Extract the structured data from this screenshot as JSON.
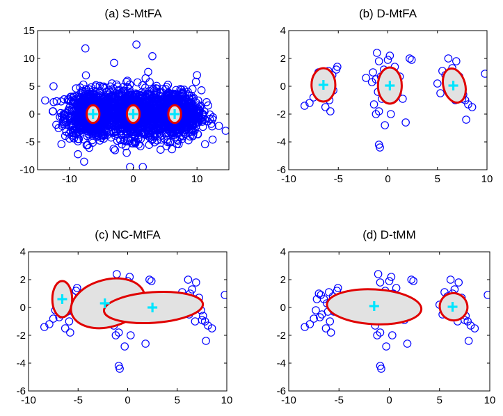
{
  "chart_data": [
    {
      "type": "scatter",
      "title": "(a) S-MtFA",
      "xlabel": "",
      "ylabel": "",
      "xlim": [
        -15,
        15
      ],
      "ylim": [
        -10,
        15
      ],
      "xticks": [
        -10,
        0,
        10
      ],
      "yticks": [
        -10,
        -5,
        0,
        5,
        10,
        15
      ],
      "dense": true,
      "clusters": [
        {
          "cx": -6.5,
          "cy": 0,
          "sx": 2.8,
          "sy": 2.5
        },
        {
          "cx": 0,
          "cy": 0,
          "sx": 3.0,
          "sy": 2.6
        },
        {
          "cx": 6.5,
          "cy": 0,
          "sx": 2.8,
          "sy": 2.5
        }
      ],
      "outliers": [
        [
          -7.5,
          11.8
        ],
        [
          0.5,
          12.5
        ],
        [
          3,
          10.4
        ],
        [
          -3,
          9.2
        ],
        [
          14.5,
          -3
        ],
        [
          -12.5,
          5
        ],
        [
          -11.5,
          -0.5
        ],
        [
          -0.5,
          -9.5
        ],
        [
          1.5,
          -9.5
        ],
        [
          10,
          7
        ]
      ],
      "components": [
        {
          "cx": -6.3,
          "cy": 0,
          "rx": 1.0,
          "ry": 1.6,
          "angle": 0
        },
        {
          "cx": 0,
          "cy": 0,
          "rx": 1.0,
          "ry": 1.6,
          "angle": 0
        },
        {
          "cx": 6.5,
          "cy": 0,
          "rx": 1.0,
          "ry": 1.6,
          "angle": 0
        }
      ],
      "centers": [
        [
          -6.3,
          0
        ],
        [
          0,
          0
        ],
        [
          6.5,
          0
        ]
      ]
    },
    {
      "type": "scatter",
      "title": "(b) D-MtFA",
      "xlabel": "",
      "ylabel": "",
      "xlim": [
        -10,
        10
      ],
      "ylim": [
        -6,
        4
      ],
      "xticks": [
        -10,
        -5,
        0,
        5,
        10
      ],
      "yticks": [
        -6,
        -4,
        -2,
        0,
        2,
        4
      ],
      "components": [
        {
          "cx": -6.5,
          "cy": 0.1,
          "rx": 1.2,
          "ry": 1.2,
          "angle": 0
        },
        {
          "cx": 0.2,
          "cy": 0.05,
          "rx": 1.2,
          "ry": 1.3,
          "angle": 0
        },
        {
          "cx": 6.7,
          "cy": 0.05,
          "rx": 1.1,
          "ry": 1.25,
          "angle": 15
        }
      ],
      "centers": [
        [
          -6.5,
          0.1
        ],
        [
          0.2,
          0.05
        ],
        [
          6.6,
          0.05
        ]
      ]
    },
    {
      "type": "scatter",
      "title": "(c) NC-MtFA",
      "xlabel": "",
      "ylabel": "",
      "xlim": [
        -10,
        10
      ],
      "ylim": [
        -6,
        4
      ],
      "xticks": [
        -10,
        -5,
        0,
        5,
        10
      ],
      "yticks": [
        -6,
        -4,
        -2,
        0,
        2,
        4
      ],
      "components": [
        {
          "cx": -6.6,
          "cy": 0.6,
          "rx": 1.0,
          "ry": 1.3,
          "angle": 0
        },
        {
          "cx": -2.0,
          "cy": 0.3,
          "rx": 3.8,
          "ry": 1.7,
          "angle": 15
        },
        {
          "cx": 2.6,
          "cy": 0.0,
          "rx": 5.0,
          "ry": 1.1,
          "angle": 4
        }
      ],
      "centers": [
        [
          -6.6,
          0.6
        ],
        [
          -2.3,
          0.3
        ],
        [
          2.5,
          0.0
        ]
      ]
    },
    {
      "type": "scatter",
      "title": "(d) D-tMM",
      "xlabel": "",
      "ylabel": "",
      "xlim": [
        -10,
        10
      ],
      "ylim": [
        -6,
        4
      ],
      "xticks": [
        -10,
        -5,
        0,
        5,
        10
      ],
      "yticks": [
        -6,
        -4,
        -2,
        0,
        2,
        4
      ],
      "components": [
        {
          "cx": -1.5,
          "cy": 0.05,
          "rx": 4.7,
          "ry": 1.25,
          "angle": -3
        },
        {
          "cx": 6.4,
          "cy": 0.05,
          "rx": 1.35,
          "ry": 1.0,
          "angle": 62
        }
      ],
      "centers": [
        [
          -1.5,
          0.1
        ],
        [
          6.3,
          0.05
        ]
      ]
    }
  ],
  "points": [
    [
      -8.4,
      -1.4
    ],
    [
      -7.9,
      -1.2
    ],
    [
      -7.5,
      -0.8
    ],
    [
      -7.3,
      -0.2
    ],
    [
      -7.0,
      1.0
    ],
    [
      -6.8,
      0.9
    ],
    [
      -6.5,
      0.6
    ],
    [
      -6.2,
      0.3
    ],
    [
      -6.1,
      -0.3
    ],
    [
      -6.7,
      -0.5
    ],
    [
      -6.9,
      -0.7
    ],
    [
      -5.9,
      -1.0
    ],
    [
      -5.5,
      -0.3
    ],
    [
      -5.2,
      1.2
    ],
    [
      -5.1,
      1.4
    ],
    [
      -5.6,
      0.8
    ],
    [
      -6.3,
      -1.5
    ],
    [
      -5.8,
      -1.8
    ],
    [
      -7.2,
      0.6
    ],
    [
      -6.0,
      1.1
    ],
    [
      -1.5,
      1.0
    ],
    [
      -1.1,
      2.4
    ],
    [
      -0.9,
      1.8
    ],
    [
      -1.6,
      0.3
    ],
    [
      -1.2,
      0.5
    ],
    [
      -1.0,
      -0.4
    ],
    [
      -0.7,
      0.7
    ],
    [
      -0.4,
      1.2
    ],
    [
      -0.2,
      0.8
    ],
    [
      -0.1,
      0.2
    ],
    [
      0.0,
      1.9
    ],
    [
      0.2,
      2.2
    ],
    [
      0.4,
      1.0
    ],
    [
      0.6,
      0.4
    ],
    [
      0.8,
      0.0
    ],
    [
      1.0,
      -0.5
    ],
    [
      0.5,
      -0.7
    ],
    [
      0.3,
      -0.3
    ],
    [
      -0.3,
      -0.2
    ],
    [
      -0.6,
      -0.9
    ],
    [
      -0.9,
      -1.8
    ],
    [
      -1.2,
      -2.0
    ],
    [
      -0.3,
      -2.8
    ],
    [
      0.3,
      -2.0
    ],
    [
      1.5,
      -0.9
    ],
    [
      1.8,
      -2.6
    ],
    [
      1.2,
      0.7
    ],
    [
      2.2,
      2.0
    ],
    [
      2.4,
      1.9
    ],
    [
      -0.9,
      -4.2
    ],
    [
      -0.8,
      -4.4
    ],
    [
      -2.2,
      0.6
    ],
    [
      -1.4,
      -1.3
    ],
    [
      0.7,
      1.4
    ],
    [
      -0.5,
      0.2
    ],
    [
      5.5,
      1.1
    ],
    [
      5.8,
      0.8
    ],
    [
      6.0,
      0.3
    ],
    [
      6.3,
      1.0
    ],
    [
      6.5,
      1.3
    ],
    [
      6.2,
      -0.5
    ],
    [
      6.4,
      -0.3
    ],
    [
      6.7,
      0.6
    ],
    [
      6.9,
      0.4
    ],
    [
      7.2,
      0.7
    ],
    [
      7.4,
      -0.2
    ],
    [
      7.6,
      -0.6
    ],
    [
      7.8,
      -1.0
    ],
    [
      8.1,
      -1.3
    ],
    [
      7.5,
      -0.9
    ],
    [
      6.8,
      -1.0
    ],
    [
      5.3,
      -0.5
    ],
    [
      5.0,
      0.2
    ],
    [
      7.9,
      -2.4
    ],
    [
      8.5,
      -1.5
    ],
    [
      9.8,
      0.9
    ],
    [
      6.9,
      1.8
    ],
    [
      6.1,
      2.0
    ],
    [
      7.0,
      0.0
    ],
    [
      6.6,
      -0.1
    ]
  ]
}
